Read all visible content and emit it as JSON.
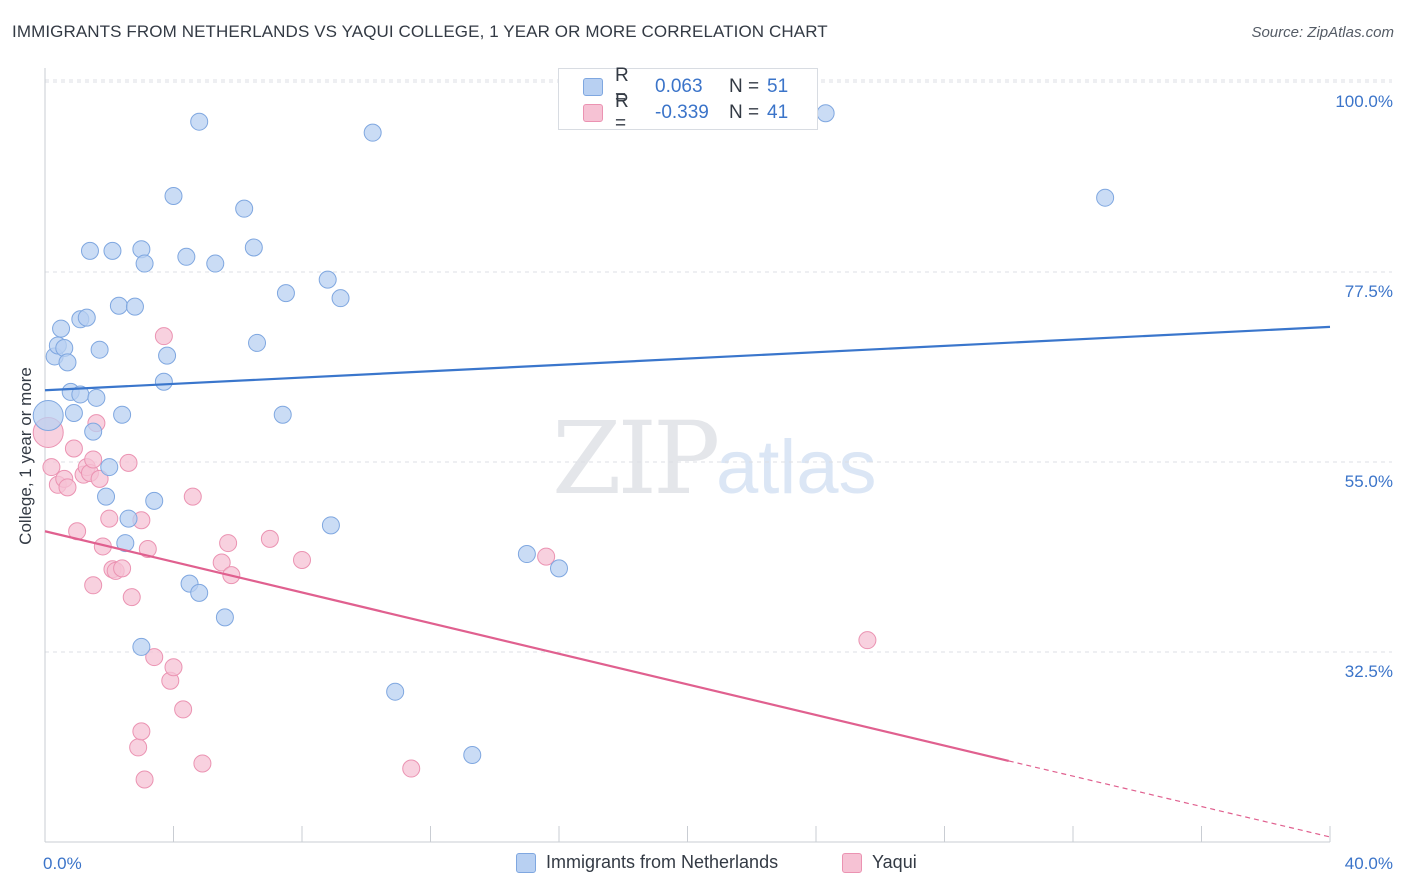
{
  "title": "IMMIGRANTS FROM NETHERLANDS VS YAQUI COLLEGE, 1 YEAR OR MORE CORRELATION CHART",
  "source": "Source: ZipAtlas.com",
  "watermark": {
    "zip": "ZIP",
    "atlas": "atlas"
  },
  "colors": {
    "blue": "#3a76cc",
    "blue_fill": "#b8d0f2",
    "pink": "#e0608f",
    "pink_fill": "#f6c2d4",
    "axis_label": "#3b74c9",
    "grid": "#dcdfe4"
  },
  "legend": {
    "rows": [
      {
        "r_label": "R =",
        "r_value": "0.063",
        "n_label": "N =",
        "n_value": "51"
      },
      {
        "r_label": "R =",
        "r_value": "-0.339",
        "n_label": "N =",
        "n_value": "41"
      }
    ]
  },
  "bottom_legend": {
    "series1": "Immigrants from Netherlands",
    "series2": "Yaqui"
  },
  "chart_data": {
    "type": "scatter",
    "title": "IMMIGRANTS FROM NETHERLANDS VS YAQUI COLLEGE, 1 YEAR OR MORE CORRELATION CHART",
    "xlabel": "",
    "ylabel": "College, 1 year or more",
    "xlim": [
      0,
      40
    ],
    "ylim": [
      12,
      103
    ],
    "x_tick_labels": [
      "0.0%",
      "40.0%"
    ],
    "y_ticks": [
      32.5,
      55.0,
      77.5,
      100.0
    ],
    "y_tick_labels": [
      "32.5%",
      "55.0%",
      "77.5%",
      "100.0%"
    ],
    "grid": true,
    "series": [
      {
        "name": "Immigrants from Netherlands",
        "color": "#3a76cc",
        "R": 0.063,
        "N": 51,
        "trend": {
          "x": [
            0,
            40
          ],
          "y": [
            63.5,
            71.0
          ]
        },
        "points": [
          [
            0.1,
            60.5
          ],
          [
            0.3,
            67.5
          ],
          [
            0.4,
            68.8
          ],
          [
            0.5,
            70.8
          ],
          [
            0.6,
            68.5
          ],
          [
            0.7,
            66.8
          ],
          [
            0.8,
            63.3
          ],
          [
            0.9,
            60.8
          ],
          [
            1.1,
            63.0
          ],
          [
            1.1,
            71.9
          ],
          [
            1.3,
            72.1
          ],
          [
            1.5,
            58.6
          ],
          [
            1.4,
            80.0
          ],
          [
            1.6,
            62.6
          ],
          [
            1.7,
            68.3
          ],
          [
            1.9,
            50.9
          ],
          [
            2.0,
            54.4
          ],
          [
            2.1,
            80.0
          ],
          [
            2.3,
            73.5
          ],
          [
            2.4,
            60.6
          ],
          [
            2.5,
            45.4
          ],
          [
            2.6,
            48.3
          ],
          [
            2.8,
            73.4
          ],
          [
            3.0,
            80.2
          ],
          [
            3.0,
            33.1
          ],
          [
            3.1,
            78.5
          ],
          [
            3.4,
            50.4
          ],
          [
            3.7,
            64.5
          ],
          [
            3.8,
            67.6
          ],
          [
            4.0,
            86.5
          ],
          [
            4.4,
            79.3
          ],
          [
            4.5,
            40.6
          ],
          [
            4.8,
            95.3
          ],
          [
            4.8,
            39.5
          ],
          [
            5.3,
            78.5
          ],
          [
            5.6,
            36.6
          ],
          [
            6.2,
            85.0
          ],
          [
            6.5,
            80.4
          ],
          [
            6.6,
            69.1
          ],
          [
            7.4,
            60.6
          ],
          [
            7.5,
            75.0
          ],
          [
            8.8,
            76.6
          ],
          [
            8.9,
            47.5
          ],
          [
            9.2,
            74.4
          ],
          [
            10.2,
            94.0
          ],
          [
            10.9,
            27.8
          ],
          [
            13.3,
            20.3
          ],
          [
            15.0,
            44.1
          ],
          [
            16.0,
            42.4
          ],
          [
            24.3,
            96.3
          ],
          [
            33.0,
            86.3
          ]
        ]
      },
      {
        "name": "Yaqui",
        "color": "#e0608f",
        "R": -0.339,
        "N": 41,
        "trend": {
          "x": [
            0,
            30
          ],
          "y": [
            46.8,
            19.6
          ]
        },
        "trend_dashed_to": {
          "x": 40,
          "y": 10.6
        },
        "points": [
          [
            0.1,
            58.5
          ],
          [
            0.2,
            54.4
          ],
          [
            0.4,
            52.3
          ],
          [
            0.6,
            53.0
          ],
          [
            0.7,
            52.0
          ],
          [
            0.9,
            56.6
          ],
          [
            1.0,
            46.8
          ],
          [
            1.2,
            53.5
          ],
          [
            1.3,
            54.4
          ],
          [
            1.4,
            53.7
          ],
          [
            1.5,
            55.3
          ],
          [
            1.5,
            40.4
          ],
          [
            1.6,
            59.6
          ],
          [
            1.7,
            53.0
          ],
          [
            1.8,
            45.0
          ],
          [
            2.0,
            48.3
          ],
          [
            2.1,
            42.3
          ],
          [
            2.2,
            42.1
          ],
          [
            2.4,
            42.4
          ],
          [
            2.6,
            54.9
          ],
          [
            2.7,
            39.0
          ],
          [
            2.9,
            21.2
          ],
          [
            3.0,
            23.1
          ],
          [
            3.0,
            48.1
          ],
          [
            3.1,
            17.4
          ],
          [
            3.2,
            44.7
          ],
          [
            3.4,
            31.9
          ],
          [
            3.7,
            69.9
          ],
          [
            3.9,
            29.1
          ],
          [
            4.0,
            30.7
          ],
          [
            4.3,
            25.7
          ],
          [
            4.6,
            50.9
          ],
          [
            4.9,
            19.3
          ],
          [
            5.5,
            43.1
          ],
          [
            5.7,
            45.4
          ],
          [
            5.8,
            41.6
          ],
          [
            7.0,
            45.9
          ],
          [
            8.0,
            43.4
          ],
          [
            11.4,
            18.7
          ],
          [
            15.6,
            43.8
          ],
          [
            25.6,
            33.9
          ]
        ]
      }
    ]
  }
}
